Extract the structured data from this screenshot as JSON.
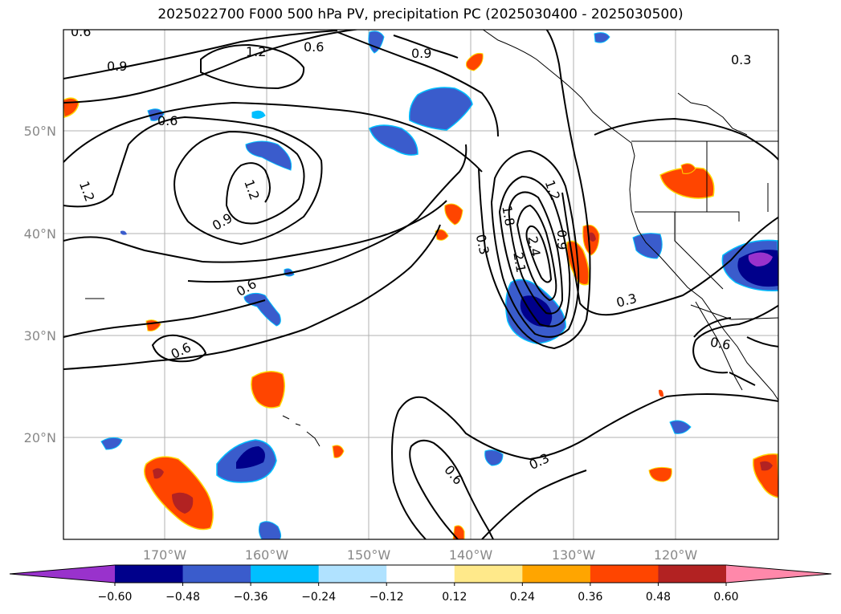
{
  "title": "2025022700 F000 500 hPa PV, precipitation PC (2025030400 - 2025030500)",
  "lat_labels": [
    "50°N",
    "40°N",
    "30°N",
    "20°N"
  ],
  "lon_labels": [
    "170°W",
    "160°W",
    "150°W",
    "140°W",
    "130°W",
    "120°W"
  ],
  "contour_labels": [
    "0.6",
    "0.9",
    "1.2",
    "0.6",
    "0.9",
    "0.3",
    "0.6",
    "1.2",
    "1.2",
    "0.9",
    "0.6",
    "0.6",
    "0.3",
    "1.8",
    "1.2",
    "0.9",
    "2.1",
    "2.4",
    "0.3",
    "0.6",
    "0.6",
    "0.3"
  ],
  "colorbar": {
    "colors": [
      "#9932cc",
      "#00008b",
      "#3a5ccc",
      "#00bfff",
      "#b0e2ff",
      "#ffffff",
      "#ffe98a",
      "#ffa500",
      "#ff4500",
      "#b22222",
      "#ff88aa"
    ],
    "tick_labels": [
      "−0.60",
      "−0.48",
      "−0.36",
      "−0.24",
      "−0.12",
      "0.12",
      "0.24",
      "0.36",
      "0.48",
      "0.60"
    ]
  }
}
